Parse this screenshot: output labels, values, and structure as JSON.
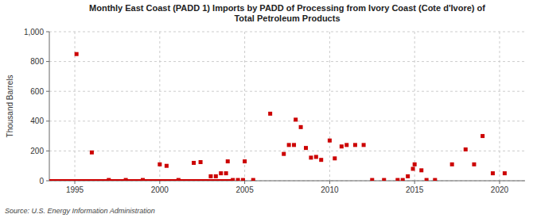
{
  "chart_data": {
    "type": "scatter",
    "title": "Monthly East Coast (PADD 1) Imports by PADD of Processing from Ivory Coast (Cote d'Ivore) of\nTotal Petroleum Products",
    "y_label": "Thousand Barrels",
    "source": "Source: U.S. Energy Information Administration",
    "xlim": [
      1993.5,
      2021.5
    ],
    "ylim": [
      0,
      1000
    ],
    "xticks": [
      1995,
      2000,
      2005,
      2010,
      2015,
      2020
    ],
    "yticks": [
      0,
      200,
      400,
      600,
      800,
      {
        "value": 1000,
        "label": "1,000"
      }
    ],
    "grid": true,
    "series": [
      {
        "type": "scatter",
        "marker": "square",
        "color": "#cc0000",
        "x": [
          1995.1,
          1996.0,
          1997.0,
          1998.0,
          1999.0,
          2000.0,
          2000.4,
          2001.1,
          2002.0,
          2002.4,
          2003.0,
          2003.3,
          2003.6,
          2003.9,
          2004.0,
          2004.3,
          2004.6,
          2004.9,
          2005.0,
          2005.5,
          2006.5,
          2007.3,
          2007.6,
          2007.9,
          2008.0,
          2008.3,
          2008.6,
          2008.9,
          2009.2,
          2009.5,
          2010.0,
          2010.3,
          2010.7,
          2011.0,
          2011.5,
          2012.0,
          2012.5,
          2013.2,
          2014.0,
          2014.3,
          2014.6,
          2014.9,
          2015.0,
          2015.4,
          2015.7,
          2016.2,
          2017.2,
          2018.0,
          2018.5,
          2019.0,
          2019.6,
          2020.3
        ],
        "values": [
          850,
          190,
          5,
          5,
          5,
          110,
          100,
          5,
          120,
          125,
          30,
          30,
          50,
          50,
          130,
          5,
          5,
          5,
          130,
          5,
          450,
          180,
          240,
          240,
          410,
          360,
          220,
          155,
          160,
          140,
          270,
          150,
          230,
          240,
          240,
          240,
          5,
          5,
          5,
          5,
          30,
          80,
          110,
          70,
          5,
          5,
          110,
          210,
          110,
          300,
          50,
          50
        ]
      },
      {
        "type": "line",
        "line_style": "solid",
        "color": "#cc0000",
        "x": [
          1993.5,
          2004.3
        ],
        "values": [
          0,
          0
        ]
      }
    ]
  }
}
